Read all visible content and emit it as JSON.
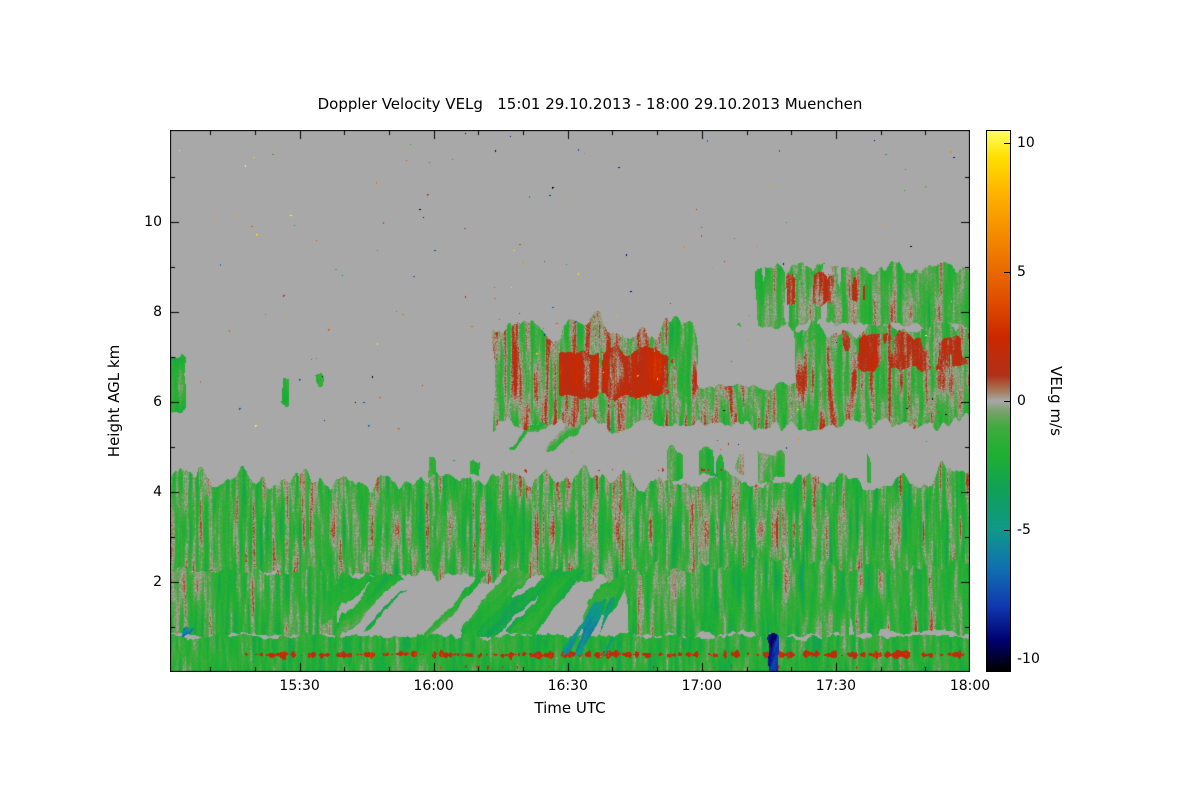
{
  "chart_data": {
    "type": "heatmap",
    "title": "Doppler Velocity VELg   15:01 29.10.2013 - 18:00 29.10.2013 Muenchen",
    "site": "Muenchen",
    "date": "29.10.2013",
    "time_start": "15:01",
    "time_end": "18:00",
    "xlabel": "Time UTC",
    "ylabel": "Height AGL km",
    "value_unit": "VELg m/s",
    "background": "#ffffff",
    "no_data_color": "#a8a8a8",
    "x_axis": {
      "label": "Time UTC",
      "duration_minutes": 179,
      "major_ticks": [
        {
          "t": 29,
          "label": "15:30"
        },
        {
          "t": 59,
          "label": "16:00"
        },
        {
          "t": 89,
          "label": "16:30"
        },
        {
          "t": 119,
          "label": "17:00"
        },
        {
          "t": 149,
          "label": "17:30"
        },
        {
          "t": 179,
          "label": "18:00"
        }
      ],
      "minor_ticks": [
        9,
        19,
        39,
        49,
        69,
        79,
        99,
        109,
        129,
        139,
        159,
        169
      ]
    },
    "y_axis": {
      "label": "Height AGL km",
      "min": 0,
      "max": 12.05,
      "major_ticks": [
        2,
        4,
        6,
        8,
        10
      ],
      "minor_ticks": [
        1,
        3,
        5,
        7,
        9,
        11
      ]
    },
    "colorbar": {
      "label": "VELg m/s",
      "min": -10.5,
      "max": 10.5,
      "ticks": [
        10,
        5,
        0,
        -5,
        -10
      ],
      "stops": [
        [
          -10.5,
          "#000000"
        ],
        [
          -9.3,
          "#000070"
        ],
        [
          -8,
          "#1038b0"
        ],
        [
          -6.5,
          "#1070b0"
        ],
        [
          -5,
          "#109888"
        ],
        [
          -3.5,
          "#10a058"
        ],
        [
          -2,
          "#20b030"
        ],
        [
          -1,
          "#40aa40"
        ],
        [
          -0.4,
          "#7aa06a"
        ],
        [
          0,
          "#a8a8a8"
        ],
        [
          0.4,
          "#a87858"
        ],
        [
          1,
          "#b03018"
        ],
        [
          2.5,
          "#cc2800"
        ],
        [
          4,
          "#e05000"
        ],
        [
          6,
          "#f08000"
        ],
        [
          8,
          "#ffb000"
        ],
        [
          9.5,
          "#ffe000"
        ],
        [
          10.5,
          "#ffff60"
        ]
      ]
    },
    "regions": [
      {
        "name": "bl-main",
        "t": [
          0,
          179
        ],
        "h": [
          2.05,
          4.35
        ],
        "base": -1.1,
        "amp": 2.4,
        "coverage": 0.97,
        "wave": 0.5,
        "streak": 0,
        "scaleX": 0.3,
        "scaleY": 0.02,
        "grain": 1.0
      },
      {
        "name": "bl-lower-left",
        "t": [
          0,
          38
        ],
        "h": [
          0.8,
          2.3
        ],
        "base": -1.4,
        "amp": 2.0,
        "coverage": 0.97,
        "wave": 0.2,
        "streak": 0,
        "scaleX": 0.28,
        "scaleY": 0.022,
        "grain": 0.9
      },
      {
        "name": "bl-fallstreaks-mid",
        "t": [
          33,
          104
        ],
        "h": [
          0.75,
          2.3
        ],
        "base": -1.9,
        "amp": 1.7,
        "coverage": 0.42,
        "wave": 0.25,
        "streak": 0.9,
        "scaleX": 0.09,
        "scaleY": 0.012,
        "grain": 0.7
      },
      {
        "name": "bl-lower-right",
        "t": [
          101,
          179
        ],
        "h": [
          0.8,
          2.4
        ],
        "base": -1.3,
        "amp": 2.2,
        "coverage": 0.82,
        "wave": 0.3,
        "streak": 0,
        "scaleX": 0.22,
        "scaleY": 0.02,
        "grain": 0.9
      },
      {
        "name": "surface-layer",
        "t": [
          0,
          179
        ],
        "h": [
          0,
          0.85
        ],
        "base": -1.7,
        "amp": 1.7,
        "coverage": 0.99,
        "wave": 0.12,
        "streak": 0,
        "scaleX": 0.3,
        "scaleY": 0.035,
        "grain": 0.8
      },
      {
        "name": "surface-updraft-band",
        "t": [
          15,
          179
        ],
        "h": [
          0.28,
          0.52
        ],
        "base": 1.9,
        "amp": 1.5,
        "coverage": 0.6,
        "wave": 0.05,
        "streak": 0,
        "scaleX": 0.45,
        "scaleY": 0.06,
        "grain": 0.9
      },
      {
        "name": "surface-red-flecks",
        "t": [
          55,
          179
        ],
        "h": [
          0.05,
          0.2
        ],
        "base": 2.2,
        "amp": 1.2,
        "coverage": 0.3,
        "wave": 0.03,
        "streak": 0,
        "scaleX": 0.5,
        "scaleY": 0.08,
        "grain": 0.9
      },
      {
        "name": "downdraft-streaks-left",
        "t": [
          1,
          22
        ],
        "h": [
          0,
          1.05
        ],
        "base": -7.5,
        "amp": 2.2,
        "coverage": 0.5,
        "wave": 0.15,
        "streak": 1.1,
        "scaleX": 0.12,
        "scaleY": 0.016,
        "grain": 0.6
      },
      {
        "name": "downdraft-1632",
        "t": [
          86,
          101
        ],
        "h": [
          0.3,
          1.7
        ],
        "base": -4.5,
        "amp": 2.0,
        "coverage": 0.45,
        "wave": 0.2,
        "streak": 0.5,
        "scaleX": 0.16,
        "scaleY": 0.02,
        "grain": 0.7
      },
      {
        "name": "downdraft-1716",
        "t": [
          133,
          137.5
        ],
        "h": [
          0,
          0.9
        ],
        "base": -8.5,
        "amp": 1.5,
        "coverage": 0.85,
        "wave": 0.1,
        "streak": 0.3,
        "scaleX": 0.2,
        "scaleY": 0.03,
        "grain": 0.5
      },
      {
        "name": "turrets-right",
        "t": [
          110,
          158
        ],
        "h": [
          4.25,
          5.0
        ],
        "base": -1.0,
        "amp": 2.0,
        "coverage": 0.45,
        "wave": 0.35,
        "streak": 0,
        "scaleX": 0.12,
        "scaleY": 0.02,
        "grain": 0.8
      },
      {
        "name": "turret-1605",
        "t": [
          56,
          73
        ],
        "h": [
          4.25,
          4.8
        ],
        "base": -1.0,
        "amp": 1.8,
        "coverage": 0.4,
        "wave": 0.3,
        "streak": 0,
        "scaleX": 0.12,
        "scaleY": 0.02,
        "grain": 0.8
      },
      {
        "name": "bltop-red-dots",
        "t": [
          60,
          125
        ],
        "h": [
          4.4,
          4.6
        ],
        "base": 1.5,
        "amp": 1.5,
        "coverage": 0.3,
        "wave": 0.05,
        "streak": 0,
        "scaleX": 0.4,
        "scaleY": 0.06,
        "grain": 1.0
      },
      {
        "name": "virga-1615",
        "t": [
          73,
          93
        ],
        "h": [
          4.9,
          5.95
        ],
        "base": -0.9,
        "amp": 1.5,
        "coverage": 0.42,
        "wave": 0.3,
        "streak": 1.4,
        "scaleX": 0.11,
        "scaleY": 0.013,
        "grain": 0.6
      },
      {
        "name": "midcloud",
        "t": [
          71,
          179
        ],
        "h": [
          5.45,
          7.7
        ],
        "base": -0.5,
        "amp": 2.2,
        "coverage": 0.9,
        "wave": 0.55,
        "streak": 0,
        "scaleX": 0.26,
        "scaleY": 0.02,
        "grain": 1.0
      },
      {
        "name": "midcloud-orange-core",
        "t": [
          86,
          113
        ],
        "h": [
          6.1,
          7.2
        ],
        "base": 1.5,
        "amp": 1.5,
        "coverage": 0.7,
        "wave": 0.25,
        "streak": 0,
        "scaleX": 0.2,
        "scaleY": 0.025,
        "grain": 0.9
      },
      {
        "name": "midcloud-hole",
        "t": [
          117,
          141
        ],
        "h": [
          6.35,
          7.9
        ],
        "base": 0,
        "amp": 0,
        "coverage": 0.88,
        "wave": 0.4,
        "streak": 0,
        "scaleX": 0.2,
        "scaleY": 0.03,
        "grain": 0,
        "erase": true
      },
      {
        "name": "midcloud-orange-late",
        "t": [
          148,
          179
        ],
        "h": [
          6.7,
          7.6
        ],
        "base": 1.2,
        "amp": 1.4,
        "coverage": 0.55,
        "wave": 0.25,
        "streak": 0,
        "scaleX": 0.2,
        "scaleY": 0.025,
        "grain": 0.9
      },
      {
        "name": "highcloud",
        "t": [
          130,
          179
        ],
        "h": [
          7.65,
          9.05
        ],
        "base": -0.9,
        "amp": 1.7,
        "coverage": 0.8,
        "wave": 0.35,
        "streak": 0,
        "scaleX": 0.24,
        "scaleY": 0.022,
        "grain": 0.9
      },
      {
        "name": "highcloud-orange",
        "t": [
          136,
          161
        ],
        "h": [
          8.15,
          8.9
        ],
        "base": 1.1,
        "amp": 1.2,
        "coverage": 0.45,
        "wave": 0.2,
        "streak": 0,
        "scaleX": 0.2,
        "scaleY": 0.03,
        "grain": 0.8
      },
      {
        "name": "wisp-1700",
        "t": [
          118,
          130
        ],
        "h": [
          7.55,
          7.95
        ],
        "base": -1.2,
        "amp": 1.2,
        "coverage": 0.35,
        "wave": 0.2,
        "streak": 0,
        "scaleX": 0.14,
        "scaleY": 0.03,
        "grain": 0.7
      },
      {
        "name": "patches-1535",
        "t": [
          17,
          45
        ],
        "h": [
          5.8,
          6.65
        ],
        "base": -1.3,
        "amp": 1.3,
        "coverage": 0.32,
        "wave": 0.3,
        "streak": 0,
        "scaleX": 0.1,
        "scaleY": 0.03,
        "grain": 0.7
      },
      {
        "name": "leftedge-cloud",
        "t": [
          0,
          4.5
        ],
        "h": [
          5.8,
          7.1
        ],
        "base": -1.6,
        "amp": 1.5,
        "coverage": 0.85,
        "wave": 0.2,
        "streak": 0,
        "scaleX": 0.3,
        "scaleY": 0.035,
        "grain": 0.8
      }
    ],
    "speckle": {
      "count": 170,
      "h_min": 4.55,
      "h_max": 11.95,
      "seed": 7
    }
  }
}
